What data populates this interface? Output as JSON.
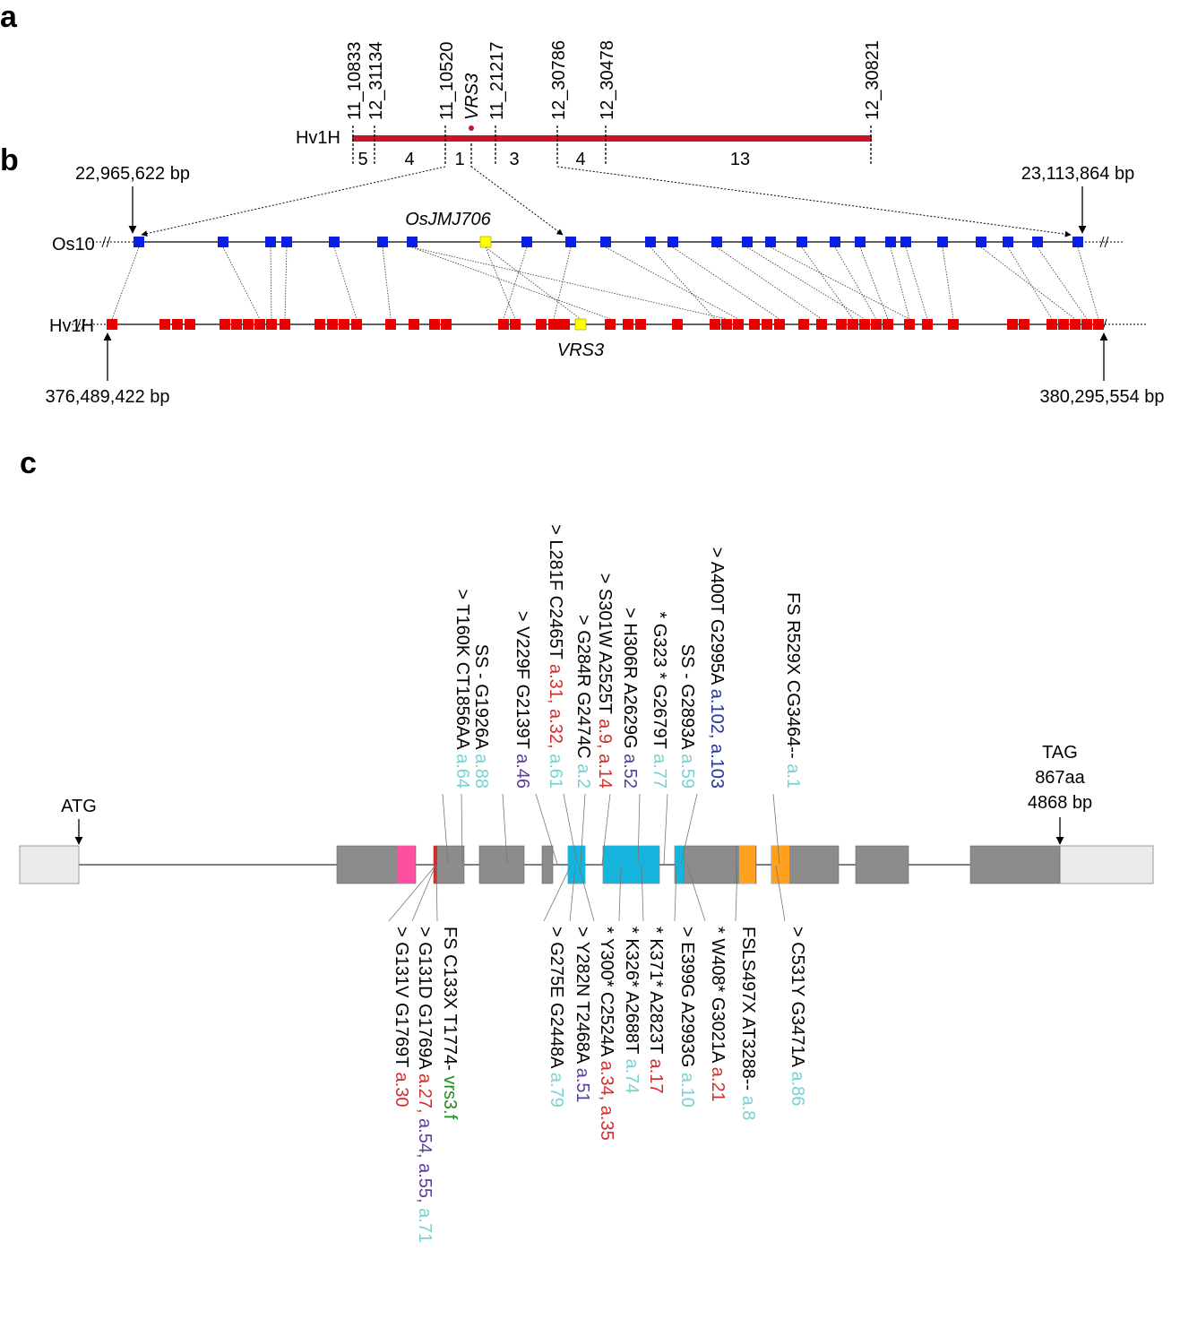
{
  "panels": {
    "a": "a",
    "b": "b",
    "c": "c"
  },
  "panel_a": {
    "chromosome_label": "Hv1H",
    "markers": [
      "11_10833",
      "12_31134",
      "11_10520",
      "11_21217",
      "12_30786",
      "12_30478",
      "12_30821"
    ],
    "gene": "VRS3",
    "recombinant_counts": [
      "5",
      "4",
      "1",
      "3",
      "4",
      "13"
    ]
  },
  "panel_b": {
    "os_label": "Os10",
    "hv_label": "Hv1H",
    "os_left_coord": "22,965,622 bp",
    "os_right_coord": "23,113,864 bp",
    "hv_left_coord": "376,489,422 bp",
    "hv_right_coord": "380,295,554 bp",
    "os_gene": "OsJMJ706",
    "hv_gene": "VRS3",
    "colors": {
      "rice_gene": "#0a1ee6",
      "barley_gene": "#e60000",
      "target_gene": "#ffff00"
    }
  },
  "panel_c": {
    "start_label": "ATG",
    "end_label": "TAG",
    "protein_length": "867aa",
    "gene_length": "4868 bp",
    "colors": {
      "exon": "#8c8c8c",
      "utr": "#ebebeb",
      "pink": "#ff4fa0",
      "cyan": "#14b4dc",
      "orange": "#ffa01e",
      "red": "#d22d2d",
      "purple": "#5a3ca0",
      "teal": "#78d2d2",
      "green": "#1e8c1e",
      "blue": "#2832a0"
    },
    "top_mutations": [
      {
        "text": "> T160K CT1856AA ",
        "alleles": [
          {
            "t": "a.64",
            "c": "teal"
          }
        ]
      },
      {
        "text": "SS - G1926A ",
        "alleles": [
          {
            "t": "a.88",
            "c": "teal"
          }
        ]
      },
      {
        "text": "> V229F G2139T ",
        "alleles": [
          {
            "t": "a.46",
            "c": "purple"
          }
        ]
      },
      {
        "text": "> L281F C2465T ",
        "alleles": [
          {
            "t": "a.31, a.32,",
            "c": "red"
          },
          {
            "t": " a.61",
            "c": "teal"
          }
        ]
      },
      {
        "text": "> G284R G2474C ",
        "alleles": [
          {
            "t": "a.2",
            "c": "teal"
          }
        ]
      },
      {
        "text": "> S301W A2525T ",
        "alleles": [
          {
            "t": "a.9, a.14",
            "c": "red"
          }
        ]
      },
      {
        "text": "> H306R A2629G ",
        "alleles": [
          {
            "t": "a.52",
            "c": "purple"
          }
        ]
      },
      {
        "text": "* G323 * G2679T ",
        "alleles": [
          {
            "t": "a.77",
            "c": "teal"
          }
        ]
      },
      {
        "text": "SS - G2893A ",
        "alleles": [
          {
            "t": "a.59",
            "c": "teal"
          }
        ]
      },
      {
        "text": "> A400T G2995A ",
        "alleles": [
          {
            "t": "a.102, a.103",
            "c": "blue"
          }
        ]
      },
      {
        "text": "FS R529X CG3464-- ",
        "alleles": [
          {
            "t": "a.1",
            "c": "teal"
          }
        ]
      }
    ],
    "bottom_mutations": [
      {
        "text": "> G131V G1769T ",
        "alleles": [
          {
            "t": "a.30",
            "c": "red"
          }
        ]
      },
      {
        "text": "> G131D G1769A ",
        "alleles": [
          {
            "t": "a.27,",
            "c": "red"
          },
          {
            "t": " a.54, a.55,",
            "c": "purple"
          },
          {
            "t": " a.71",
            "c": "teal"
          }
        ]
      },
      {
        "text": "FS C133X T1774- ",
        "alleles": [
          {
            "t": "vrs3.f",
            "c": "green"
          }
        ]
      },
      {
        "text": "> G275E G2448A ",
        "alleles": [
          {
            "t": "a.79",
            "c": "teal"
          }
        ]
      },
      {
        "text": "> Y282N T2468A ",
        "alleles": [
          {
            "t": "a.51",
            "c": "purple"
          }
        ]
      },
      {
        "text": "* Y300* C2524A ",
        "alleles": [
          {
            "t": "a.34, a.35",
            "c": "red"
          }
        ]
      },
      {
        "text": "* K326* A2688T ",
        "alleles": [
          {
            "t": "a.74",
            "c": "teal"
          }
        ]
      },
      {
        "text": "* K371* A2823T ",
        "alleles": [
          {
            "t": "a.17",
            "c": "red"
          }
        ]
      },
      {
        "text": "> E399G A2993G ",
        "alleles": [
          {
            "t": "a.10",
            "c": "teal"
          }
        ]
      },
      {
        "text": "* W408* G3021A ",
        "alleles": [
          {
            "t": "a.21",
            "c": "red"
          }
        ]
      },
      {
        "text": "FSLS497X AT3288-- ",
        "alleles": [
          {
            "t": "a.8",
            "c": "teal"
          }
        ]
      },
      {
        "text": "> C531Y G3471A ",
        "alleles": [
          {
            "t": "a.86",
            "c": "teal"
          }
        ]
      }
    ]
  }
}
